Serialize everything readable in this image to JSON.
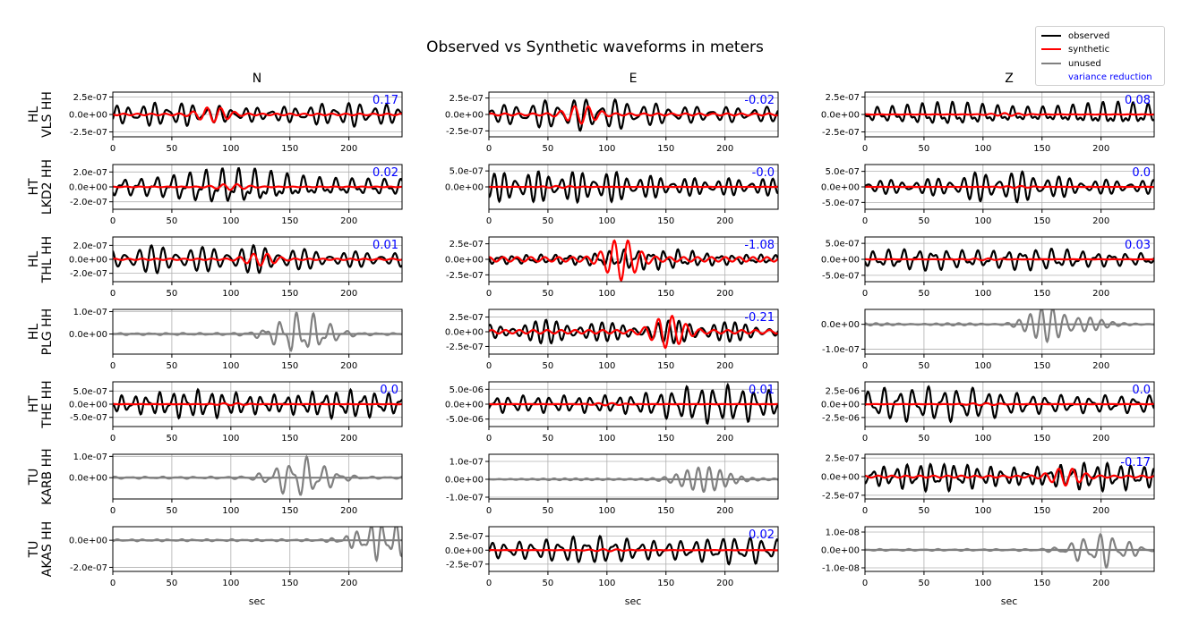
{
  "title": "Observed vs Synthetic waveforms in meters",
  "columns": [
    "N",
    "E",
    "Z"
  ],
  "stations": [
    {
      "network": "HL",
      "name": "VLS HH"
    },
    {
      "network": "HT",
      "name": "LKD2 HH"
    },
    {
      "network": "HL",
      "name": "THL HH"
    },
    {
      "network": "HL",
      "name": "PLG HH"
    },
    {
      "network": "HT",
      "name": "THE HH"
    },
    {
      "network": "TU",
      "name": "KARB HH"
    },
    {
      "network": "TU",
      "name": "AKAS HH"
    }
  ],
  "xlabel": "sec",
  "legend": {
    "position": "top-right",
    "items": [
      {
        "label": "observed",
        "color": "#000000",
        "kind": "line"
      },
      {
        "label": "synthetic",
        "color": "#ff0000",
        "kind": "line"
      },
      {
        "label": "unused",
        "color": "#808080",
        "kind": "line"
      },
      {
        "label": "variance reduction",
        "color": "#0000ff",
        "kind": "text"
      }
    ]
  },
  "chart_data": {
    "type": "line",
    "xlim": [
      0,
      245
    ],
    "xticks": [
      0,
      50,
      100,
      150,
      200
    ],
    "grid": true,
    "colors": {
      "observed": "#000000",
      "synthetic": "#ff0000",
      "unused": "#808080",
      "variance": "#0000ff"
    },
    "panels": [
      {
        "row": 0,
        "col": 0,
        "ylim": [
          -3.2e-07,
          3.2e-07
        ],
        "yticks": [
          {
            "v": 2.5e-07,
            "label": "2.5e-07"
          },
          {
            "v": 0,
            "label": "0.0e+00"
          },
          {
            "v": -2.5e-07,
            "label": "-2.5e-07"
          }
        ],
        "variance_reduction": "0.17",
        "used": true,
        "obs_amp": 2.2e-07,
        "syn_amp": 1.1e-07,
        "syn_center": 85,
        "seed": 1
      },
      {
        "row": 0,
        "col": 1,
        "ylim": [
          -3.4e-07,
          3.4e-07
        ],
        "yticks": [
          {
            "v": 2.5e-07,
            "label": "2.5e-07"
          },
          {
            "v": 0,
            "label": "0.0e+00"
          },
          {
            "v": -2.5e-07,
            "label": "-2.5e-07"
          }
        ],
        "variance_reduction": "-0.02",
        "used": true,
        "obs_amp": 2.6e-07,
        "syn_amp": 1.4e-07,
        "syn_center": 78,
        "seed": 2
      },
      {
        "row": 0,
        "col": 2,
        "ylim": [
          -3.2e-07,
          3.2e-07
        ],
        "yticks": [
          {
            "v": 2.5e-07,
            "label": "2.5e-07"
          },
          {
            "v": 0,
            "label": "0.0e+00"
          },
          {
            "v": -2.5e-07,
            "label": "-2.5e-07"
          }
        ],
        "variance_reduction": "0.08",
        "used": true,
        "obs_amp": 2.3e-07,
        "syn_amp": 2e-08,
        "syn_center": 120,
        "seed": 3
      },
      {
        "row": 1,
        "col": 0,
        "ylim": [
          -3e-07,
          3e-07
        ],
        "yticks": [
          {
            "v": 2e-07,
            "label": "2.0e-07"
          },
          {
            "v": 0,
            "label": "0.0e+00"
          },
          {
            "v": -2e-07,
            "label": "-2.0e-07"
          }
        ],
        "variance_reduction": "0.02",
        "used": true,
        "obs_amp": 2.6e-07,
        "syn_amp": 4e-08,
        "syn_center": 100,
        "seed": 4
      },
      {
        "row": 1,
        "col": 1,
        "ylim": [
          -7e-07,
          7e-07
        ],
        "yticks": [
          {
            "v": 5e-07,
            "label": "5.0e-07"
          },
          {
            "v": 0,
            "label": "0.0e+00"
          }
        ],
        "variance_reduction": "-0.0",
        "used": true,
        "obs_amp": 6e-07,
        "syn_amp": 3e-08,
        "syn_center": 60,
        "seed": 5
      },
      {
        "row": 1,
        "col": 2,
        "ylim": [
          -7.2e-07,
          7.2e-07
        ],
        "yticks": [
          {
            "v": 5e-07,
            "label": "5.0e-07"
          },
          {
            "v": 0,
            "label": "0.0e+00"
          },
          {
            "v": -5e-07,
            "label": "-5.0e-07"
          }
        ],
        "variance_reduction": "0.0",
        "used": true,
        "obs_amp": 5e-07,
        "syn_amp": 3e-08,
        "syn_center": 130,
        "seed": 6
      },
      {
        "row": 2,
        "col": 0,
        "ylim": [
          -3.2e-07,
          3.2e-07
        ],
        "yticks": [
          {
            "v": 2e-07,
            "label": "2.0e-07"
          },
          {
            "v": 0,
            "label": "0.0e+00"
          },
          {
            "v": -2e-07,
            "label": "-2.0e-07"
          }
        ],
        "variance_reduction": "0.01",
        "used": true,
        "obs_amp": 2.5e-07,
        "syn_amp": 9e-08,
        "syn_center": 125,
        "seed": 7
      },
      {
        "row": 2,
        "col": 1,
        "ylim": [
          -3.6e-07,
          3.6e-07
        ],
        "yticks": [
          {
            "v": 2.5e-07,
            "label": "2.5e-07"
          },
          {
            "v": 0,
            "label": "0.0e+00"
          },
          {
            "v": -2.5e-07,
            "label": "-2.5e-07"
          }
        ],
        "variance_reduction": "-1.08",
        "used": true,
        "obs_amp": 1.7e-07,
        "syn_amp": 3.4e-07,
        "syn_center": 112,
        "seed": 8
      },
      {
        "row": 2,
        "col": 2,
        "ylim": [
          -7e-07,
          7e-07
        ],
        "yticks": [
          {
            "v": 5e-07,
            "label": "5.0e-07"
          },
          {
            "v": 0,
            "label": "0.0e+00"
          },
          {
            "v": -5e-07,
            "label": "-5.0e-07"
          }
        ],
        "variance_reduction": "0.03",
        "used": true,
        "obs_amp": 4.5e-07,
        "syn_amp": 3e-08,
        "syn_center": 100,
        "seed": 9
      },
      {
        "row": 3,
        "col": 0,
        "ylim": [
          -9e-08,
          1.1e-07
        ],
        "yticks": [
          {
            "v": 1e-07,
            "label": "1.0e-07"
          },
          {
            "v": 0,
            "label": "0.0e+00"
          }
        ],
        "variance_reduction": "",
        "used": false,
        "obs_amp": 1e-07,
        "syn_amp": 0,
        "syn_center": 160,
        "seed": 10
      },
      {
        "row": 3,
        "col": 1,
        "ylim": [
          -3.8e-07,
          3.8e-07
        ],
        "yticks": [
          {
            "v": 2.5e-07,
            "label": "2.5e-07"
          },
          {
            "v": 0,
            "label": "0.0e+00"
          },
          {
            "v": -2.5e-07,
            "label": "-2.5e-07"
          }
        ],
        "variance_reduction": "-0.21",
        "used": true,
        "obs_amp": 2.6e-07,
        "syn_amp": 2.8e-07,
        "syn_center": 152,
        "seed": 11
      },
      {
        "row": 3,
        "col": 2,
        "ylim": [
          -1.2e-07,
          6e-08
        ],
        "yticks": [
          {
            "v": 0,
            "label": "0.0e+00"
          },
          {
            "v": -1e-07,
            "label": "-1.0e-07"
          }
        ],
        "variance_reduction": "",
        "used": false,
        "obs_amp": 9e-08,
        "syn_amp": 0,
        "syn_center": 165,
        "seed": 12
      },
      {
        "row": 4,
        "col": 0,
        "ylim": [
          -8.5e-07,
          8.5e-07
        ],
        "yticks": [
          {
            "v": 5e-07,
            "label": "5.0e-07"
          },
          {
            "v": 0,
            "label": "0.0e+00"
          },
          {
            "v": -5e-07,
            "label": "-5.0e-07"
          }
        ],
        "variance_reduction": "0.0",
        "used": true,
        "obs_amp": 7e-07,
        "syn_amp": 4e-08,
        "syn_center": 100,
        "seed": 13
      },
      {
        "row": 4,
        "col": 1,
        "ylim": [
          -7.5e-06,
          7.5e-06
        ],
        "yticks": [
          {
            "v": 5e-06,
            "label": "5.0e-06"
          },
          {
            "v": 0,
            "label": "0.0e+00"
          },
          {
            "v": -5e-06,
            "label": "-5.0e-06"
          }
        ],
        "variance_reduction": "0.01",
        "used": true,
        "obs_amp": 6.5e-06,
        "syn_amp": 4e-07,
        "syn_center": 100,
        "seed": 14
      },
      {
        "row": 4,
        "col": 2,
        "ylim": [
          -4.2e-06,
          4.2e-06
        ],
        "yticks": [
          {
            "v": 2.5e-06,
            "label": "2.5e-06"
          },
          {
            "v": 0,
            "label": "0.0e+00"
          },
          {
            "v": -2.5e-06,
            "label": "-2.5e-06"
          }
        ],
        "variance_reduction": "0.0",
        "used": true,
        "obs_amp": 3.8e-06,
        "syn_amp": 2e-07,
        "syn_center": 100,
        "seed": 15
      },
      {
        "row": 5,
        "col": 0,
        "ylim": [
          -1e-07,
          1.1e-07
        ],
        "yticks": [
          {
            "v": 1e-07,
            "label": "1.0e-07"
          },
          {
            "v": 0,
            "label": "0.0e+00"
          }
        ],
        "variance_reduction": "",
        "used": false,
        "obs_amp": 1e-07,
        "syn_amp": 0,
        "syn_center": 160,
        "seed": 16
      },
      {
        "row": 5,
        "col": 1,
        "ylim": [
          -1.1e-07,
          1.4e-07
        ],
        "yticks": [
          {
            "v": 1e-07,
            "label": "1.0e-07"
          },
          {
            "v": 0,
            "label": "0.0e+00"
          },
          {
            "v": -1e-07,
            "label": "-1.0e-07"
          }
        ],
        "variance_reduction": "",
        "used": false,
        "obs_amp": 1e-07,
        "syn_amp": 0,
        "syn_center": 175,
        "seed": 17
      },
      {
        "row": 5,
        "col": 2,
        "ylim": [
          -3e-07,
          3e-07
        ],
        "yticks": [
          {
            "v": 2.5e-07,
            "label": "2.5e-07"
          },
          {
            "v": 0,
            "label": "0.0e+00"
          },
          {
            "v": -2.5e-07,
            "label": "-2.5e-07"
          }
        ],
        "variance_reduction": "-0.17",
        "used": true,
        "obs_amp": 2.5e-07,
        "syn_amp": 1.2e-07,
        "syn_center": 170,
        "seed": 18
      },
      {
        "row": 6,
        "col": 0,
        "ylim": [
          -2.3e-07,
          1e-07
        ],
        "yticks": [
          {
            "v": 0,
            "label": "0.0e+00"
          },
          {
            "v": -2e-07,
            "label": "-2.0e-07"
          }
        ],
        "variance_reduction": "",
        "used": false,
        "obs_amp": 1.5e-07,
        "syn_amp": 0,
        "syn_center": 230,
        "seed": 19
      },
      {
        "row": 6,
        "col": 1,
        "ylim": [
          -3.8e-07,
          4.2e-07
        ],
        "yticks": [
          {
            "v": 2.5e-07,
            "label": "2.5e-07"
          },
          {
            "v": 0,
            "label": "0.0e+00"
          },
          {
            "v": -2.5e-07,
            "label": "-2.5e-07"
          }
        ],
        "variance_reduction": "0.02",
        "used": true,
        "obs_amp": 3.2e-07,
        "syn_amp": 2e-08,
        "syn_center": 100,
        "seed": 20
      },
      {
        "row": 6,
        "col": 2,
        "ylim": [
          -1.2e-08,
          1.3e-08
        ],
        "yticks": [
          {
            "v": 1e-08,
            "label": "1.0e-08"
          },
          {
            "v": 0,
            "label": "0.0e+00"
          },
          {
            "v": -1e-08,
            "label": "-1.0e-08"
          }
        ],
        "variance_reduction": "",
        "used": false,
        "obs_amp": 1e-08,
        "syn_amp": 0,
        "syn_center": 200,
        "seed": 21
      }
    ]
  }
}
